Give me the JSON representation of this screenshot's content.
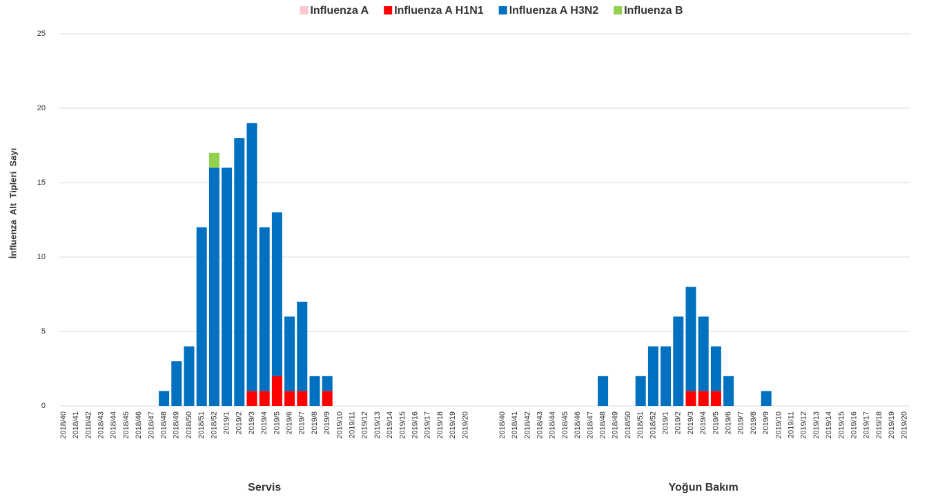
{
  "chart_data": {
    "type": "grouped_stacked_bar",
    "y_label": "İnfluenza  Alt  Tipleri  Sayı",
    "groups": [
      "Servis",
      "Yoğun Bakım"
    ],
    "categories": [
      [
        "2018/40",
        "2018/41",
        "2018/42",
        "2018/43",
        "2018/44",
        "2018/45",
        "2018/46",
        "2018/47",
        "2018/48",
        "2018/49",
        "2018/50",
        "2018/51",
        "2018/52",
        "2019/1",
        "2019/2",
        "2019/3",
        "2019/4",
        "2019/5",
        "2019/6",
        "2019/7",
        "2019/8",
        "2019/9",
        "2019/10",
        "2019/11",
        "2019/12",
        "2019/13",
        "2019/14",
        "2019/15",
        "2019/16",
        "2019/17",
        "2019/18",
        "2019/19",
        "2019/20"
      ],
      [
        "2018/40",
        "2018/41",
        "2018/42",
        "2018/43",
        "2018/44",
        "2018/45",
        "2018/46",
        "2018/47",
        "2018/48",
        "2018/49",
        "2018/50",
        "2018/51",
        "2018/52",
        "2019/1",
        "2019/2",
        "2019/3",
        "2019/4",
        "2019/5",
        "2019/6",
        "2019/7",
        "2019/8",
        "2019/9",
        "2019/10",
        "2019/11",
        "2019/12",
        "2019/13",
        "2019/14",
        "2019/15",
        "2019/16",
        "2019/17",
        "2019/18",
        "2019/19",
        "2019/20"
      ]
    ],
    "series": [
      {
        "name": "Influenza A",
        "color": "#ffc7ce",
        "values": [
          [
            0,
            0,
            0,
            0,
            0,
            0,
            0,
            0,
            0,
            0,
            0,
            0,
            0,
            0,
            0,
            0,
            0,
            0,
            0,
            0,
            0,
            0,
            0,
            0,
            0,
            0,
            0,
            0,
            0,
            0,
            0,
            0,
            0
          ],
          [
            0,
            0,
            0,
            0,
            0,
            0,
            0,
            0,
            0,
            0,
            0,
            0,
            0,
            0,
            0,
            0,
            0,
            0,
            0,
            0,
            0,
            0,
            0,
            0,
            0,
            0,
            0,
            0,
            0,
            0,
            0,
            0,
            0
          ]
        ]
      },
      {
        "name": "Influenza A H1N1",
        "color": "#ff0000",
        "values": [
          [
            0,
            0,
            0,
            0,
            0,
            0,
            0,
            0,
            0,
            0,
            0,
            0,
            0,
            0,
            0,
            1,
            1,
            2,
            1,
            1,
            0,
            1,
            0,
            0,
            0,
            0,
            0,
            0,
            0,
            0,
            0,
            0,
            0
          ],
          [
            0,
            0,
            0,
            0,
            0,
            0,
            0,
            0,
            0,
            0,
            0,
            0,
            0,
            0,
            0,
            1,
            1,
            1,
            0,
            0,
            0,
            0,
            0,
            0,
            0,
            0,
            0,
            0,
            0,
            0,
            0,
            0,
            0
          ]
        ]
      },
      {
        "name": "Influenza A H3N2",
        "color": "#0070c0",
        "values": [
          [
            0,
            0,
            0,
            0,
            0,
            0,
            0,
            0,
            1,
            3,
            4,
            12,
            16,
            16,
            18,
            18,
            11,
            11,
            5,
            6,
            2,
            1,
            0,
            0,
            0,
            0,
            0,
            0,
            0,
            0,
            0,
            0,
            0
          ],
          [
            0,
            0,
            0,
            0,
            0,
            0,
            0,
            0,
            2,
            0,
            0,
            2,
            4,
            4,
            6,
            7,
            5,
            3,
            2,
            0,
            0,
            1,
            0,
            0,
            0,
            0,
            0,
            0,
            0,
            0,
            0,
            0,
            0
          ]
        ]
      },
      {
        "name": "Influenza B",
        "color": "#92d050",
        "values": [
          [
            0,
            0,
            0,
            0,
            0,
            0,
            0,
            0,
            0,
            0,
            0,
            0,
            1,
            0,
            0,
            0,
            0,
            0,
            0,
            0,
            0,
            0,
            0,
            0,
            0,
            0,
            0,
            0,
            0,
            0,
            0,
            0,
            0
          ],
          [
            0,
            0,
            0,
            0,
            0,
            0,
            0,
            0,
            0,
            0,
            0,
            0,
            0,
            0,
            0,
            0,
            0,
            0,
            0,
            0,
            0,
            0,
            0,
            0,
            0,
            0,
            0,
            0,
            0,
            0,
            0,
            0,
            0
          ]
        ]
      }
    ],
    "ylim": [
      0,
      25
    ],
    "yticks": [
      0,
      5,
      10,
      15,
      20,
      25
    ],
    "grid": true,
    "legend": "top"
  }
}
